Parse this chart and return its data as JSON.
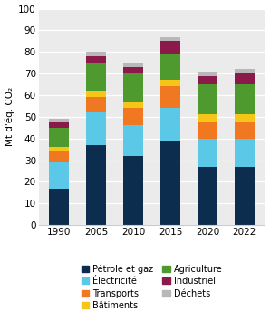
{
  "years": [
    "1990",
    "2005",
    "2010",
    "2015",
    "2020",
    "2022"
  ],
  "sectors": [
    "Pétrole et gaz",
    "Électricité",
    "Transports",
    "Bâtiments",
    "Agriculture",
    "Industriel",
    "Déchets"
  ],
  "colors": [
    "#0d2d4e",
    "#5bc8e8",
    "#f07820",
    "#f5c518",
    "#4e9a2e",
    "#8b1a4a",
    "#b8b8b8"
  ],
  "values": {
    "Pétrole et gaz": [
      17,
      37,
      32,
      39,
      27,
      27
    ],
    "Électricité": [
      12,
      15,
      14,
      15,
      13,
      13
    ],
    "Transports": [
      5,
      7,
      8,
      10,
      8,
      8
    ],
    "Bâtiments": [
      2,
      3,
      3,
      3,
      3,
      3
    ],
    "Agriculture": [
      9,
      13,
      13,
      12,
      14,
      14
    ],
    "Industriel": [
      3,
      3,
      3,
      6,
      4,
      5
    ],
    "Déchets": [
      1,
      2,
      2,
      2,
      2,
      2
    ]
  },
  "ylabel": "Mt d'éq. CO₂",
  "ylim": [
    0,
    100
  ],
  "yticks": [
    0,
    10,
    20,
    30,
    40,
    50,
    60,
    70,
    80,
    90,
    100
  ],
  "bg_color": "#ffffff",
  "plot_bg_color": "#ebebeb",
  "bar_width": 0.55,
  "tick_fontsize": 7.5,
  "axis_fontsize": 7.5,
  "legend_fontsize": 7.0,
  "legend_left": [
    "Pétrole et gaz",
    "Transports",
    "Agriculture",
    "Déchets"
  ],
  "legend_right": [
    "Électricité",
    "Bâtiments",
    "Industriel"
  ]
}
